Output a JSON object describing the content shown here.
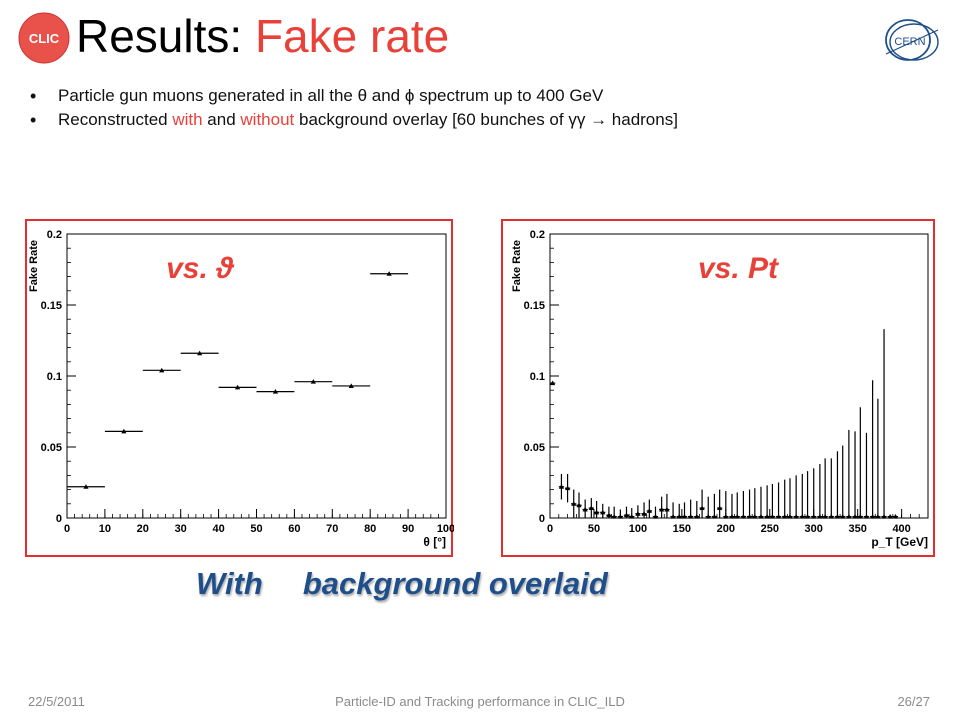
{
  "title": {
    "prefix": "Results: ",
    "accent": "Fake rate"
  },
  "bullets": [
    {
      "text": "Particle gun muons generated in all the θ and ϕ spectrum up to 400 GeV"
    },
    {
      "parts": [
        "Reconstructed ",
        "with",
        " and ",
        "without",
        " background overlay [60 bunches of γγ  ",
        "→",
        "  hadrons]"
      ]
    }
  ],
  "logos": {
    "clic": "CLIC",
    "cern": "CERN"
  },
  "caption": {
    "word1": "With",
    "word2": "background overlaid"
  },
  "footer": {
    "date": "22/5/2011",
    "center": "Particle-ID and Tracking performance in CLIC_ILD",
    "page": "26/27"
  },
  "colors": {
    "accent_red": "#e8413a",
    "caption_blue": "#1f4f8b",
    "frame_red": "#e03030",
    "footer_gray": "#8a8a8a"
  },
  "chart_data": [
    {
      "type": "scatter",
      "title": "vs. ϑ",
      "xlabel": "θ [°]",
      "ylabel": "Fake Rate",
      "xlim": [
        0,
        100
      ],
      "ylim": [
        0,
        0.2
      ],
      "xticks": [
        0,
        10,
        20,
        30,
        40,
        50,
        60,
        70,
        80,
        90,
        100
      ],
      "xtick_labels": [
        "0",
        "10",
        "20",
        "30",
        "40",
        "50",
        "60",
        "70",
        "80",
        "90",
        "100"
      ],
      "yticks": [
        0,
        0.05,
        0.1,
        0.15,
        0.2
      ],
      "ytick_labels": [
        "0",
        "0.05",
        "0.1",
        "0.15",
        "0.2"
      ],
      "points": [
        {
          "x": 5,
          "y": 0.022,
          "xerr": 5,
          "yerr": 0
        },
        {
          "x": 15,
          "y": 0.061,
          "xerr": 5,
          "yerr": 0
        },
        {
          "x": 25,
          "y": 0.104,
          "xerr": 5,
          "yerr": 0
        },
        {
          "x": 35,
          "y": 0.116,
          "xerr": 5,
          "yerr": 0
        },
        {
          "x": 45,
          "y": 0.092,
          "xerr": 5,
          "yerr": 0
        },
        {
          "x": 55,
          "y": 0.089,
          "xerr": 5,
          "yerr": 0
        },
        {
          "x": 65,
          "y": 0.096,
          "xerr": 5,
          "yerr": 0
        },
        {
          "x": 75,
          "y": 0.093,
          "xerr": 5,
          "yerr": 0
        },
        {
          "x": 85,
          "y": 0.172,
          "xerr": 5,
          "yerr": 0
        }
      ]
    },
    {
      "type": "scatter",
      "title": "vs. Pt",
      "xlabel": "p_T [GeV]",
      "ylabel": "Fake Rate",
      "xlim": [
        0,
        430
      ],
      "ylim": [
        0,
        0.2
      ],
      "xticks": [
        0,
        50,
        100,
        150,
        200,
        250,
        300,
        350,
        400
      ],
      "xtick_labels": [
        "0",
        "50",
        "100",
        "150",
        "200",
        "250",
        "300",
        "350",
        "400"
      ],
      "yticks": [
        0,
        0.05,
        0.1,
        0.15,
        0.2
      ],
      "ytick_labels": [
        "0",
        "0.05",
        "0.1",
        "0.15",
        "0.2"
      ],
      "points": [
        {
          "x": 3,
          "y": 0.095,
          "xerr": 3,
          "yerr": 0
        },
        {
          "x": 13,
          "y": 0.022,
          "xerr": 3,
          "yerr": 0.009
        },
        {
          "x": 20,
          "y": 0.021,
          "xerr": 3,
          "yerr": 0.01
        },
        {
          "x": 27,
          "y": 0.01,
          "xerr": 3,
          "yerr": 0.01
        },
        {
          "x": 33,
          "y": 0.009,
          "xerr": 3,
          "yerr": 0.009
        },
        {
          "x": 40,
          "y": 0.006,
          "xerr": 3,
          "yerr": 0.007
        },
        {
          "x": 47,
          "y": 0.007,
          "xerr": 3,
          "yerr": 0.007
        },
        {
          "x": 53,
          "y": 0.004,
          "xerr": 3,
          "yerr": 0.008
        },
        {
          "x": 60,
          "y": 0.004,
          "xerr": 3,
          "yerr": 0.006
        },
        {
          "x": 67,
          "y": 0.002,
          "xerr": 3,
          "yerr": 0.006
        },
        {
          "x": 73,
          "y": 0.001,
          "xerr": 3,
          "yerr": 0.007
        },
        {
          "x": 80,
          "y": 0.001,
          "xerr": 3,
          "yerr": 0.005
        },
        {
          "x": 87,
          "y": 0.002,
          "xerr": 3,
          "yerr": 0.006
        },
        {
          "x": 93,
          "y": 0.001,
          "xerr": 3,
          "yerr": 0.006
        },
        {
          "x": 100,
          "y": 0.003,
          "xerr": 3,
          "yerr": 0.006
        },
        {
          "x": 107,
          "y": 0.003,
          "xerr": 3,
          "yerr": 0.008
        },
        {
          "x": 113,
          "y": 0.005,
          "xerr": 3,
          "yerr": 0.008
        },
        {
          "x": 120,
          "y": 0.001,
          "xerr": 3,
          "yerr": 0.007
        },
        {
          "x": 127,
          "y": 0.006,
          "xerr": 3,
          "yerr": 0.009
        },
        {
          "x": 133,
          "y": 0.006,
          "xerr": 3,
          "yerr": 0.011
        },
        {
          "x": 140,
          "y": 0.001,
          "xerr": 3,
          "yerr": 0.01
        },
        {
          "x": 147,
          "y": 0.001,
          "xerr": 3,
          "yerr": 0.009
        },
        {
          "x": 153,
          "y": 0.001,
          "xerr": 3,
          "yerr": 0.01
        },
        {
          "x": 160,
          "y": 0.001,
          "xerr": 3,
          "yerr": 0.012
        },
        {
          "x": 167,
          "y": 0.001,
          "xerr": 3,
          "yerr": 0.011
        },
        {
          "x": 173,
          "y": 0.007,
          "xerr": 3,
          "yerr": 0.013
        },
        {
          "x": 180,
          "y": 0.001,
          "xerr": 3,
          "yerr": 0.014
        },
        {
          "x": 187,
          "y": 0.001,
          "xerr": 3,
          "yerr": 0.016
        },
        {
          "x": 193,
          "y": 0.007,
          "xerr": 3,
          "yerr": 0.013
        },
        {
          "x": 200,
          "y": 0.001,
          "xerr": 3,
          "yerr": 0.018
        },
        {
          "x": 207,
          "y": 0.001,
          "xerr": 3,
          "yerr": 0.016
        },
        {
          "x": 213,
          "y": 0.001,
          "xerr": 3,
          "yerr": 0.017
        },
        {
          "x": 220,
          "y": 0.001,
          "xerr": 3,
          "yerr": 0.018
        },
        {
          "x": 227,
          "y": 0.001,
          "xerr": 3,
          "yerr": 0.019
        },
        {
          "x": 233,
          "y": 0.001,
          "xerr": 3,
          "yerr": 0.02
        },
        {
          "x": 240,
          "y": 0.001,
          "xerr": 3,
          "yerr": 0.021
        },
        {
          "x": 247,
          "y": 0.001,
          "xerr": 3,
          "yerr": 0.022
        },
        {
          "x": 253,
          "y": 0.001,
          "xerr": 3,
          "yerr": 0.023
        },
        {
          "x": 260,
          "y": 0.001,
          "xerr": 3,
          "yerr": 0.024
        },
        {
          "x": 267,
          "y": 0.001,
          "xerr": 3,
          "yerr": 0.026
        },
        {
          "x": 273,
          "y": 0.001,
          "xerr": 3,
          "yerr": 0.027
        },
        {
          "x": 280,
          "y": 0.001,
          "xerr": 3,
          "yerr": 0.029
        },
        {
          "x": 287,
          "y": 0.001,
          "xerr": 3,
          "yerr": 0.03
        },
        {
          "x": 293,
          "y": 0.001,
          "xerr": 3,
          "yerr": 0.032
        },
        {
          "x": 300,
          "y": 0.001,
          "xerr": 3,
          "yerr": 0.034
        },
        {
          "x": 307,
          "y": 0.001,
          "xerr": 3,
          "yerr": 0.037
        },
        {
          "x": 313,
          "y": 0.001,
          "xerr": 3,
          "yerr": 0.041
        },
        {
          "x": 320,
          "y": 0.001,
          "xerr": 3,
          "yerr": 0.041
        },
        {
          "x": 327,
          "y": 0.001,
          "xerr": 3,
          "yerr": 0.046
        },
        {
          "x": 333,
          "y": 0.001,
          "xerr": 3,
          "yerr": 0.05
        },
        {
          "x": 340,
          "y": 0.001,
          "xerr": 3,
          "yerr": 0.061
        },
        {
          "x": 347,
          "y": 0.001,
          "xerr": 3,
          "yerr": 0.06
        },
        {
          "x": 353,
          "y": 0.001,
          "xerr": 3,
          "yerr": 0.077
        },
        {
          "x": 360,
          "y": 0.001,
          "xerr": 3,
          "yerr": 0.059
        },
        {
          "x": 367,
          "y": 0.001,
          "xerr": 3,
          "yerr": 0.096
        },
        {
          "x": 373,
          "y": 0.001,
          "xerr": 3,
          "yerr": 0.083
        },
        {
          "x": 380,
          "y": 0.001,
          "xerr": 3,
          "yerr": 0.132
        },
        {
          "x": 387,
          "y": 0.001,
          "xerr": 3,
          "yerr": 0.001
        },
        {
          "x": 393,
          "y": 0.001,
          "xerr": 3,
          "yerr": 0.001
        }
      ]
    }
  ]
}
